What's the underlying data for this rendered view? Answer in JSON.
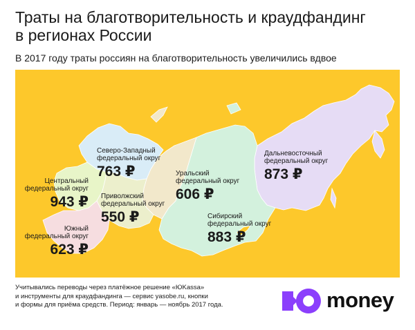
{
  "title": {
    "line1": "Траты на благотворительность и краудфандинг",
    "line2": "в регионах России"
  },
  "subtitle": "В 2017 году траты россиян на благотворительность увеличились вдвое",
  "colors": {
    "background": "#fdc82b",
    "central": "#e8f5c8",
    "northwest": "#d9ecf7",
    "volga": "#ecefcc",
    "south": "#f6dde0",
    "ural": "#f2e8cb",
    "siberia": "#d3f1dd",
    "fareast": "#e6dcf5",
    "logo_purple": "#8b3ffc"
  },
  "regions": [
    {
      "id": "northwest",
      "name_line1": "Северо-Западный",
      "name_line2": "федеральный округ",
      "value": "763 ₽"
    },
    {
      "id": "central",
      "name_line1": "Центральный",
      "name_line2": "федеральный округ",
      "value": "943 ₽"
    },
    {
      "id": "volga",
      "name_line1": "Приволжский",
      "name_line2": "федеральный округ",
      "value": "550 ₽"
    },
    {
      "id": "south",
      "name_line1": "Южный",
      "name_line2": "федеральный округ",
      "value": "623 ₽"
    },
    {
      "id": "ural",
      "name_line1": "Уральский",
      "name_line2": "федеральный округ",
      "value": "606 ₽"
    },
    {
      "id": "siberia",
      "name_line1": "Сибирский",
      "name_line2": "федеральный округ",
      "value": "883 ₽"
    },
    {
      "id": "fareast",
      "name_line1": "Дальневосточный",
      "name_line2": "федеральный округ",
      "value": "873 ₽"
    }
  ],
  "footnote": {
    "line1": "Учитывались переводы через платёжное решение «ЮKassa»",
    "line2": "и инструменты для краудфандинга — сервис yasobe.ru, кнопки",
    "line3": "и формы для приёма средств. Период: январь — ноябрь 2017 года."
  },
  "logo": {
    "text": "money",
    "icon": "yoomoney-logo-icon"
  }
}
